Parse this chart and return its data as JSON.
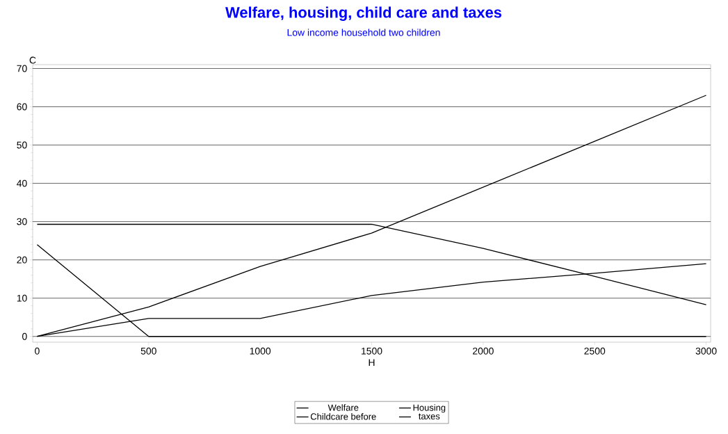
{
  "chart_data": {
    "type": "line",
    "title": "Welfare, housing, child care and taxes",
    "subtitle": "Low income household two children",
    "xlabel": "H",
    "ylabel": "C",
    "x": [
      0,
      500,
      1000,
      1500,
      2000,
      2500,
      3000
    ],
    "series": [
      {
        "name": "Welfare",
        "color": "#000000",
        "values": [
          24,
          0,
          0,
          0,
          0,
          0,
          0
        ]
      },
      {
        "name": "Housing",
        "color": "#000000",
        "values": [
          29.3,
          29.3,
          29.3,
          29.3,
          23,
          15.7,
          8.3
        ]
      },
      {
        "name": "Childcare before",
        "color": "#000000",
        "values": [
          0,
          4.7,
          4.7,
          10.7,
          14.2,
          16.5,
          19
        ]
      },
      {
        "name": "taxes",
        "color": "#000000",
        "values": [
          0,
          7.7,
          18.3,
          27,
          39,
          51,
          63
        ]
      }
    ],
    "xlim": [
      -20,
      3020
    ],
    "ylim": [
      -1.5,
      71
    ],
    "xticks": [
      0,
      500,
      1000,
      1500,
      2000,
      2500,
      3000
    ],
    "yticks": [
      0,
      10,
      20,
      30,
      40,
      50,
      60,
      70
    ],
    "grid": "y",
    "legend": "bottom",
    "line_style": "solid"
  }
}
